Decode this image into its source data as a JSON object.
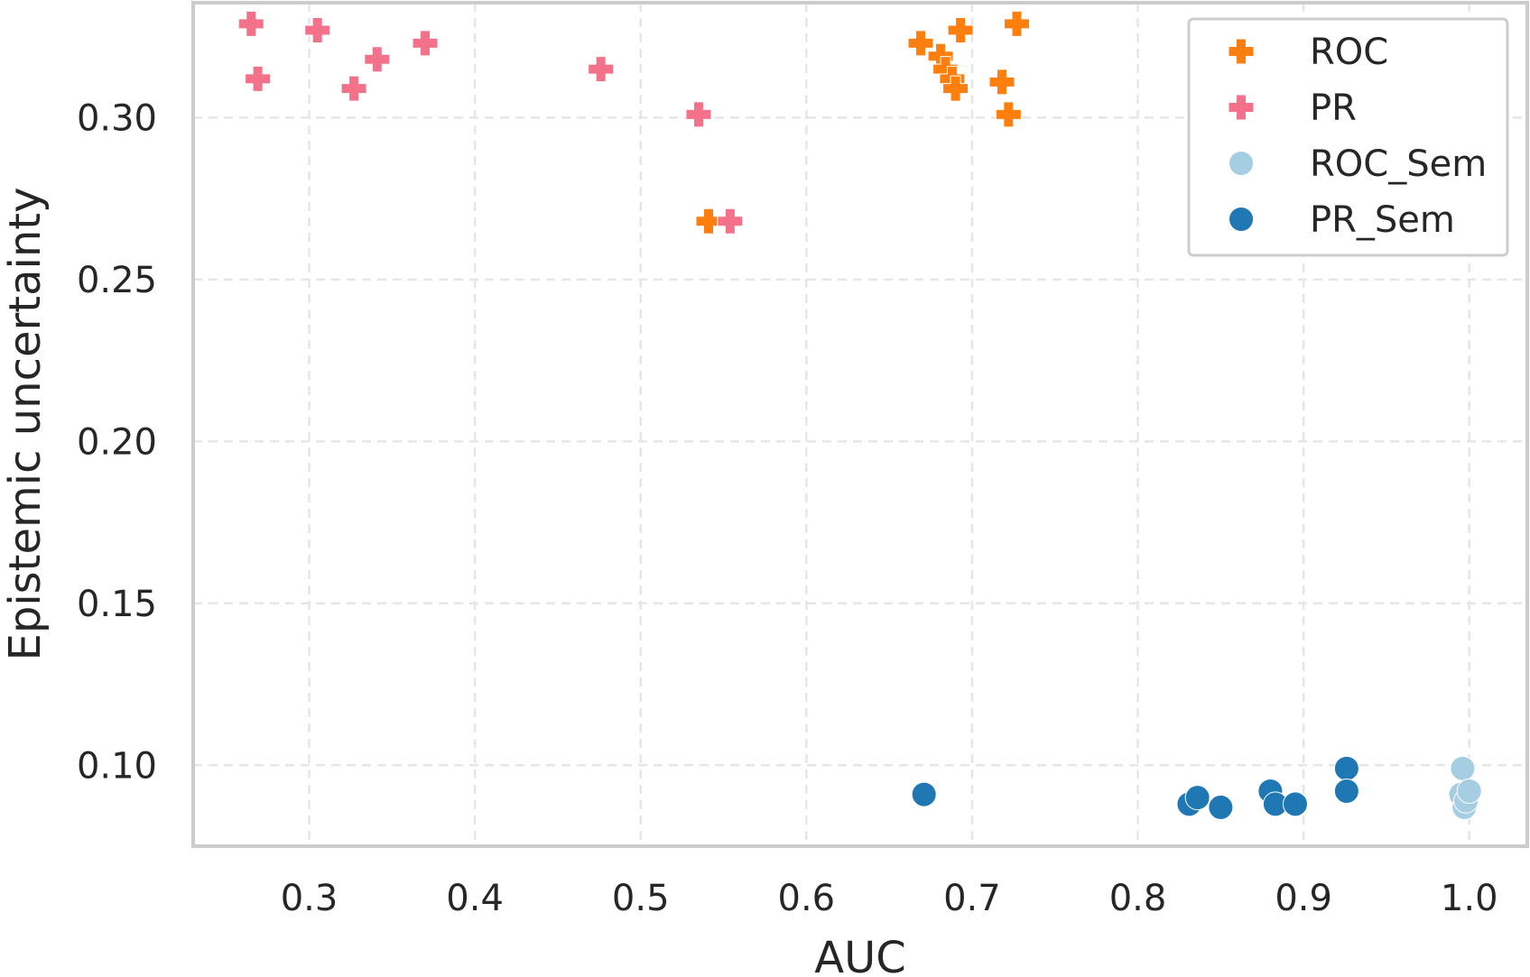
{
  "chart_data": {
    "type": "scatter",
    "xlabel": "AUC",
    "ylabel": "Epistemic uncertainty",
    "xlim": [
      0.23,
      1.035
    ],
    "ylim": [
      0.075,
      0.3355
    ],
    "x_ticks": [
      0.3,
      0.4,
      0.5,
      0.6,
      0.7,
      0.8,
      0.9,
      1.0
    ],
    "x_tick_labels": [
      "0.3",
      "0.4",
      "0.5",
      "0.6",
      "0.7",
      "0.8",
      "0.9",
      "1.0"
    ],
    "y_ticks": [
      0.1,
      0.15,
      0.2,
      0.25,
      0.3
    ],
    "y_tick_labels": [
      "0.10",
      "0.15",
      "0.20",
      "0.25",
      "0.30"
    ],
    "grid": true,
    "legend_position": "top-right",
    "series": [
      {
        "name": "ROC",
        "marker": "plus",
        "color": "#ff7f0e",
        "points": [
          [
            0.541,
            0.268
          ],
          [
            0.669,
            0.323
          ],
          [
            0.681,
            0.319
          ],
          [
            0.684,
            0.315
          ],
          [
            0.688,
            0.312
          ],
          [
            0.69,
            0.309
          ],
          [
            0.693,
            0.327
          ],
          [
            0.718,
            0.311
          ],
          [
            0.722,
            0.301
          ],
          [
            0.727,
            0.329
          ]
        ]
      },
      {
        "name": "PR",
        "marker": "plus",
        "color": "#f47289",
        "points": [
          [
            0.265,
            0.329
          ],
          [
            0.269,
            0.312
          ],
          [
            0.305,
            0.327
          ],
          [
            0.327,
            0.309
          ],
          [
            0.341,
            0.318
          ],
          [
            0.37,
            0.323
          ],
          [
            0.476,
            0.315
          ],
          [
            0.535,
            0.301
          ],
          [
            0.554,
            0.268
          ]
        ]
      },
      {
        "name": "ROC_Sem",
        "marker": "circle",
        "color": "#a6cee3",
        "points": [
          [
            0.995,
            0.091
          ],
          [
            0.996,
            0.099
          ],
          [
            0.997,
            0.087
          ],
          [
            0.998,
            0.089
          ],
          [
            1.0,
            0.092
          ]
        ]
      },
      {
        "name": "PR_Sem",
        "marker": "circle",
        "color": "#1f78b4",
        "points": [
          [
            0.671,
            0.091
          ],
          [
            0.831,
            0.088
          ],
          [
            0.836,
            0.09
          ],
          [
            0.85,
            0.087
          ],
          [
            0.88,
            0.092
          ],
          [
            0.883,
            0.088
          ],
          [
            0.895,
            0.088
          ],
          [
            0.926,
            0.099
          ],
          [
            0.926,
            0.092
          ]
        ]
      }
    ]
  }
}
